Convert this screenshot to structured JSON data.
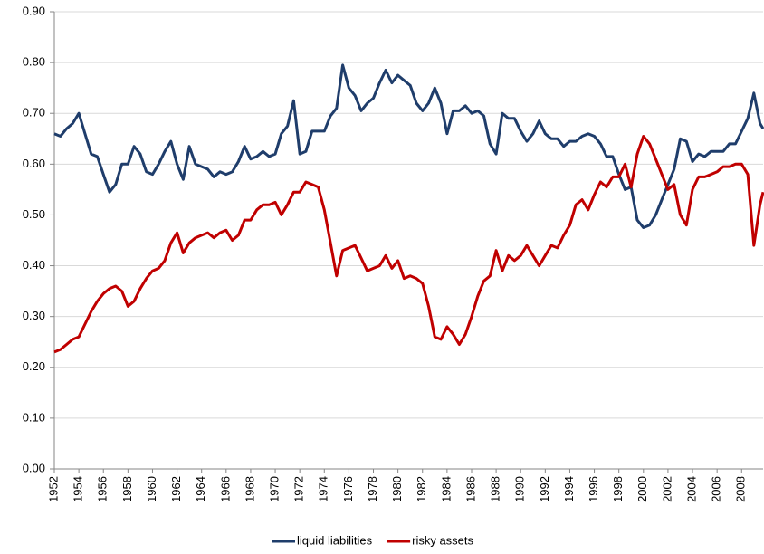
{
  "chart_data": {
    "type": "line",
    "x": [
      1952,
      1952.5,
      1953,
      1953.5,
      1954,
      1954.5,
      1955,
      1955.5,
      1956,
      1956.5,
      1957,
      1957.5,
      1958,
      1958.5,
      1959,
      1959.5,
      1960,
      1960.5,
      1961,
      1961.5,
      1962,
      1962.5,
      1963,
      1963.5,
      1964,
      1964.5,
      1965,
      1965.5,
      1966,
      1966.5,
      1967,
      1967.5,
      1968,
      1968.5,
      1969,
      1969.5,
      1970,
      1970.5,
      1971,
      1971.5,
      1972,
      1972.5,
      1973,
      1973.5,
      1974,
      1974.5,
      1975,
      1975.5,
      1976,
      1976.5,
      1977,
      1977.5,
      1978,
      1978.5,
      1979,
      1979.5,
      1980,
      1980.5,
      1981,
      1981.5,
      1982,
      1982.5,
      1983,
      1983.5,
      1984,
      1984.5,
      1985,
      1985.5,
      1986,
      1986.5,
      1987,
      1987.5,
      1988,
      1988.5,
      1989,
      1989.5,
      1990,
      1990.5,
      1991,
      1991.5,
      1992,
      1992.5,
      1993,
      1993.5,
      1994,
      1994.5,
      1995,
      1995.5,
      1996,
      1996.5,
      1997,
      1997.5,
      1998,
      1998.5,
      1999,
      1999.5,
      2000,
      2000.5,
      2001,
      2001.5,
      2002,
      2002.5,
      2003,
      2003.5,
      2004,
      2004.5,
      2005,
      2005.5,
      2006,
      2006.5,
      2007,
      2007.5,
      2008,
      2008.5,
      2009,
      2009.5,
      2009.75
    ],
    "series": [
      {
        "name": "liquid liabilities",
        "color": "#1f3d6b",
        "values": [
          0.66,
          0.655,
          0.67,
          0.68,
          0.7,
          0.66,
          0.62,
          0.615,
          0.58,
          0.545,
          0.56,
          0.6,
          0.6,
          0.635,
          0.62,
          0.585,
          0.58,
          0.6,
          0.625,
          0.645,
          0.6,
          0.57,
          0.635,
          0.6,
          0.595,
          0.59,
          0.575,
          0.585,
          0.58,
          0.585,
          0.605,
          0.635,
          0.61,
          0.615,
          0.625,
          0.615,
          0.62,
          0.66,
          0.675,
          0.725,
          0.62,
          0.625,
          0.665,
          0.665,
          0.665,
          0.695,
          0.71,
          0.795,
          0.75,
          0.735,
          0.705,
          0.72,
          0.73,
          0.76,
          0.785,
          0.76,
          0.775,
          0.765,
          0.755,
          0.72,
          0.705,
          0.72,
          0.75,
          0.72,
          0.66,
          0.705,
          0.705,
          0.715,
          0.7,
          0.705,
          0.695,
          0.64,
          0.62,
          0.7,
          0.69,
          0.69,
          0.665,
          0.645,
          0.66,
          0.685,
          0.66,
          0.65,
          0.65,
          0.635,
          0.645,
          0.645,
          0.655,
          0.66,
          0.655,
          0.64,
          0.615,
          0.615,
          0.58,
          0.55,
          0.555,
          0.49,
          0.475,
          0.48,
          0.5,
          0.53,
          0.56,
          0.59,
          0.65,
          0.645,
          0.605,
          0.62,
          0.615,
          0.625,
          0.625,
          0.625,
          0.64,
          0.64,
          0.665,
          0.69,
          0.74,
          0.68,
          0.67
        ]
      },
      {
        "name": "risky assets",
        "color": "#c00000",
        "values": [
          0.23,
          0.235,
          0.245,
          0.255,
          0.26,
          0.285,
          0.31,
          0.33,
          0.345,
          0.355,
          0.36,
          0.35,
          0.32,
          0.33,
          0.355,
          0.375,
          0.39,
          0.395,
          0.41,
          0.445,
          0.465,
          0.425,
          0.445,
          0.455,
          0.46,
          0.465,
          0.455,
          0.465,
          0.47,
          0.45,
          0.46,
          0.49,
          0.49,
          0.51,
          0.52,
          0.52,
          0.525,
          0.5,
          0.52,
          0.545,
          0.545,
          0.565,
          0.56,
          0.555,
          0.51,
          0.445,
          0.38,
          0.43,
          0.435,
          0.44,
          0.415,
          0.39,
          0.395,
          0.4,
          0.42,
          0.395,
          0.41,
          0.375,
          0.38,
          0.375,
          0.365,
          0.32,
          0.26,
          0.255,
          0.28,
          0.265,
          0.245,
          0.265,
          0.3,
          0.34,
          0.37,
          0.38,
          0.43,
          0.39,
          0.42,
          0.41,
          0.42,
          0.44,
          0.42,
          0.4,
          0.42,
          0.44,
          0.435,
          0.46,
          0.48,
          0.52,
          0.53,
          0.51,
          0.54,
          0.565,
          0.555,
          0.575,
          0.575,
          0.6,
          0.555,
          0.62,
          0.655,
          0.64,
          0.61,
          0.58,
          0.55,
          0.56,
          0.5,
          0.48,
          0.55,
          0.575,
          0.575,
          0.58,
          0.585,
          0.595,
          0.595,
          0.6,
          0.6,
          0.58,
          0.44,
          0.52,
          0.545
        ]
      }
    ],
    "xlim": [
      1952,
      2009.75
    ],
    "xticks": [
      1952,
      1954,
      1956,
      1958,
      1960,
      1962,
      1964,
      1966,
      1968,
      1970,
      1972,
      1974,
      1976,
      1978,
      1980,
      1982,
      1984,
      1986,
      1988,
      1990,
      1992,
      1994,
      1996,
      1998,
      2000,
      2002,
      2004,
      2006,
      2008
    ],
    "ylim": [
      0,
      0.9
    ],
    "yticks": [
      {
        "value": 0,
        "label": "0.00"
      },
      {
        "value": 0.1,
        "label": "0.10"
      },
      {
        "value": 0.2,
        "label": "0.20"
      },
      {
        "value": 0.3,
        "label": "0.30"
      },
      {
        "value": 0.4,
        "label": "0.40"
      },
      {
        "value": 0.5,
        "label": "0.50"
      },
      {
        "value": 0.6,
        "label": "0.60"
      },
      {
        "value": 0.7,
        "label": "0.70"
      },
      {
        "value": 0.8,
        "label": "0.80"
      },
      {
        "value": 0.9,
        "label": "0.90"
      }
    ],
    "grid": true,
    "legend": "bottom"
  }
}
